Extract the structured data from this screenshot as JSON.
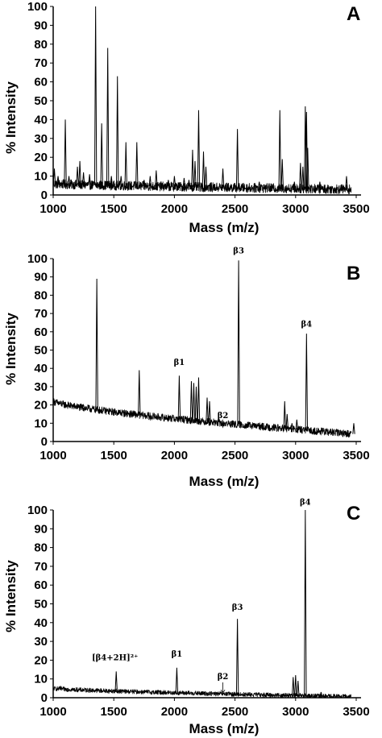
{
  "chart_data": [
    {
      "type": "line",
      "panel": "A",
      "xlabel": "Mass (m/z)",
      "ylabel": "% Intensity",
      "xlim": [
        1000,
        3500
      ],
      "ylim": [
        0,
        100
      ],
      "xticks": [
        "1000",
        "1500",
        "2000",
        "2500",
        "3000",
        "3500"
      ],
      "yticks": [
        "0",
        "10",
        "20",
        "30",
        "40",
        "50",
        "60",
        "70",
        "80",
        "90",
        "100"
      ],
      "baseline": {
        "start": 6,
        "end": 3,
        "noise": 2.5
      },
      "peaks": [
        {
          "x": 1010,
          "y": 14
        },
        {
          "x": 1040,
          "y": 10
        },
        {
          "x": 1100,
          "y": 40
        },
        {
          "x": 1130,
          "y": 10
        },
        {
          "x": 1200,
          "y": 15
        },
        {
          "x": 1220,
          "y": 18
        },
        {
          "x": 1250,
          "y": 12
        },
        {
          "x": 1300,
          "y": 11
        },
        {
          "x": 1350,
          "y": 100
        },
        {
          "x": 1400,
          "y": 38
        },
        {
          "x": 1450,
          "y": 78
        },
        {
          "x": 1480,
          "y": 10
        },
        {
          "x": 1530,
          "y": 63
        },
        {
          "x": 1560,
          "y": 10
        },
        {
          "x": 1600,
          "y": 28
        },
        {
          "x": 1690,
          "y": 28
        },
        {
          "x": 1750,
          "y": 8
        },
        {
          "x": 1800,
          "y": 10
        },
        {
          "x": 1850,
          "y": 13
        },
        {
          "x": 1950,
          "y": 8
        },
        {
          "x": 2000,
          "y": 10
        },
        {
          "x": 2080,
          "y": 9
        },
        {
          "x": 2120,
          "y": 8
        },
        {
          "x": 2150,
          "y": 24
        },
        {
          "x": 2170,
          "y": 18
        },
        {
          "x": 2200,
          "y": 45
        },
        {
          "x": 2240,
          "y": 23
        },
        {
          "x": 2260,
          "y": 15
        },
        {
          "x": 2400,
          "y": 14
        },
        {
          "x": 2520,
          "y": 35
        },
        {
          "x": 2700,
          "y": 7
        },
        {
          "x": 2870,
          "y": 45
        },
        {
          "x": 2890,
          "y": 19
        },
        {
          "x": 2990,
          "y": 7
        },
        {
          "x": 3040,
          "y": 17
        },
        {
          "x": 3060,
          "y": 15
        },
        {
          "x": 3080,
          "y": 47
        },
        {
          "x": 3090,
          "y": 44
        },
        {
          "x": 3100,
          "y": 25
        },
        {
          "x": 3200,
          "y": 7
        },
        {
          "x": 3420,
          "y": 10
        }
      ],
      "annotations": []
    },
    {
      "type": "line",
      "panel": "B",
      "xlabel": "Mass (m/z)",
      "ylabel": "% Intensity",
      "xlim": [
        1000,
        3500
      ],
      "ylim": [
        0,
        100
      ],
      "xticks": [
        "1000",
        "1500",
        "2000",
        "2500",
        "3000",
        "3500"
      ],
      "yticks": [
        "0",
        "10",
        "20",
        "30",
        "40",
        "50",
        "60",
        "70",
        "80",
        "90",
        "100"
      ],
      "baseline": {
        "start": 22,
        "end": 4,
        "noise": 2.0
      },
      "peaks": [
        {
          "x": 1250,
          "y": 20
        },
        {
          "x": 1360,
          "y": 89
        },
        {
          "x": 1540,
          "y": 15
        },
        {
          "x": 1710,
          "y": 39
        },
        {
          "x": 1800,
          "y": 12
        },
        {
          "x": 2040,
          "y": 36
        },
        {
          "x": 2140,
          "y": 33
        },
        {
          "x": 2160,
          "y": 32
        },
        {
          "x": 2180,
          "y": 30
        },
        {
          "x": 2200,
          "y": 35
        },
        {
          "x": 2270,
          "y": 24
        },
        {
          "x": 2290,
          "y": 22
        },
        {
          "x": 2400,
          "y": 8
        },
        {
          "x": 2530,
          "y": 99
        },
        {
          "x": 2910,
          "y": 22
        },
        {
          "x": 2930,
          "y": 15
        },
        {
          "x": 2970,
          "y": 10
        },
        {
          "x": 3010,
          "y": 12
        },
        {
          "x": 3090,
          "y": 59
        },
        {
          "x": 3480,
          "y": 10
        }
      ],
      "annotations": [
        {
          "label": "β1",
          "x": 2040,
          "y": 41
        },
        {
          "label": "β2",
          "x": 2400,
          "y": 12
        },
        {
          "label": "β3",
          "x": 2530,
          "y": 102
        },
        {
          "label": "β4",
          "x": 3090,
          "y": 62
        }
      ]
    },
    {
      "type": "line",
      "panel": "C",
      "xlabel": "Mass (m/z)",
      "ylabel": "% Intensity",
      "xlim": [
        1000,
        3500
      ],
      "ylim": [
        0,
        100
      ],
      "xticks": [
        "1000",
        "1500",
        "2000",
        "2500",
        "3000",
        "3500"
      ],
      "yticks": [
        "0",
        "10",
        "20",
        "30",
        "40",
        "50",
        "60",
        "70",
        "80",
        "90",
        "100"
      ],
      "baseline": {
        "start": 5,
        "end": 0.5,
        "noise": 1.2
      },
      "peaks": [
        {
          "x": 1060,
          "y": 6
        },
        {
          "x": 1120,
          "y": 5
        },
        {
          "x": 1520,
          "y": 14
        },
        {
          "x": 2020,
          "y": 16
        },
        {
          "x": 2400,
          "y": 2
        },
        {
          "x": 2520,
          "y": 42
        },
        {
          "x": 2980,
          "y": 11
        },
        {
          "x": 3000,
          "y": 12
        },
        {
          "x": 3020,
          "y": 9
        },
        {
          "x": 3080,
          "y": 100
        },
        {
          "x": 3210,
          "y": 3
        }
      ],
      "annotations": [
        {
          "label": "[β4+2H]²⁺",
          "x": 1510,
          "y": 19
        },
        {
          "label": "β1",
          "x": 2020,
          "y": 21
        },
        {
          "label": "β2",
          "x": 2400,
          "y": 9,
          "arrow": true
        },
        {
          "label": "β3",
          "x": 2520,
          "y": 46
        },
        {
          "label": "β4",
          "x": 3080,
          "y": 102
        }
      ]
    }
  ],
  "panels": [
    {
      "letter": "A",
      "ylabel": "% Intensity",
      "xlabel": "Mass (m/z)"
    },
    {
      "letter": "B",
      "ylabel": "% Intensity",
      "xlabel": "Mass (m/z)"
    },
    {
      "letter": "C",
      "ylabel": "% Intensity",
      "xlabel": "Mass (m/z)"
    }
  ]
}
